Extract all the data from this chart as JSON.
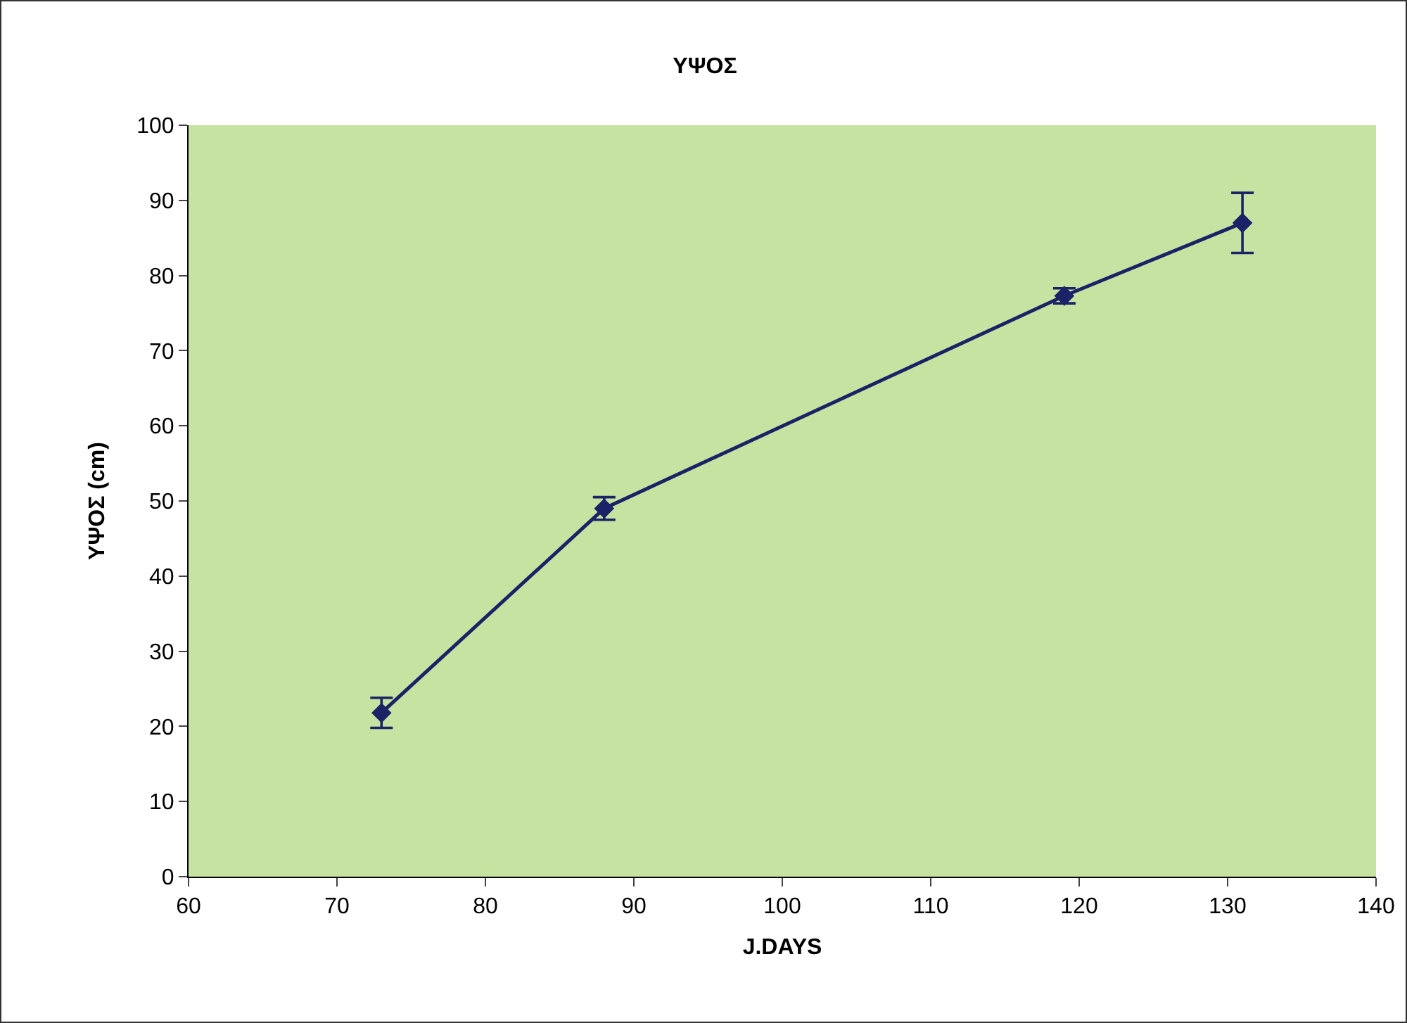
{
  "chart_data": {
    "type": "line",
    "title": "ΥΨΟΣ",
    "xlabel": "J.DAYS",
    "ylabel": "ΥΨΟΣ (cm)",
    "x": [
      73,
      88,
      119,
      131
    ],
    "series": [
      {
        "color": "#1b2266",
        "values": [
          21.8,
          49,
          77.3,
          87
        ],
        "errors": [
          2,
          1.5,
          1,
          4
        ]
      }
    ],
    "xlim": [
      60,
      140
    ],
    "xticks": [
      60,
      70,
      80,
      90,
      100,
      110,
      120,
      130,
      140
    ],
    "ylim": [
      0,
      100
    ],
    "yticks": [
      0,
      10,
      20,
      30,
      40,
      50,
      60,
      70,
      80,
      90,
      100
    ],
    "grid": false,
    "marker": "diamond",
    "line_style": "solid"
  }
}
